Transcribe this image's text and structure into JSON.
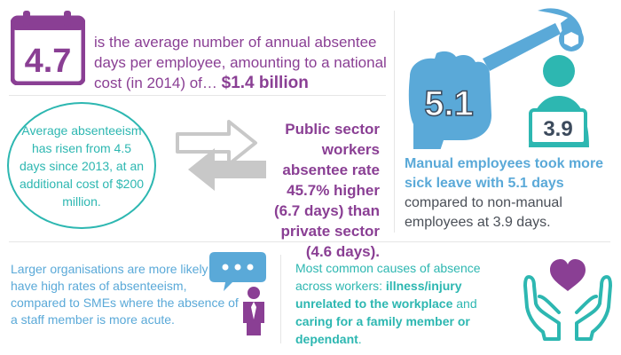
{
  "calendar": {
    "number": "4.7"
  },
  "p1": {
    "text": "is the average number of annual absentee days per employee, amounting to a national cost (in 2014) of… ",
    "highlight": "$1.4 billion"
  },
  "oval_text": "Average absenteeism has risen from 4.5 days since 2013, at an additional cost of $200 million.",
  "public_sector_text": "Public sector workers absentee rate 45.7% higher (6.7 days) than private sector (4.6 days).",
  "manual": {
    "big_number": "5.1",
    "small_number": "3.9",
    "bold_text": "Manual employees took more sick leave with 5.1 days",
    "rest_text": " compared to non-manual employees at 3.9 days."
  },
  "orgs_text": "Larger organisations are more likely to have high rates of absenteeism, compared to SMEs where the absence of a staff member is more acute.",
  "causes": {
    "lead": "Most common causes of absence across workers: ",
    "bold1": "illness/injury unrelated to the workplace",
    "mid": " and ",
    "bold2": "caring for a family member or dependant",
    "end": "."
  },
  "colors": {
    "purple": "#8a3f94",
    "teal": "#2db7b1",
    "blue": "#5aa9d8",
    "gray": "#c8c8c8"
  }
}
